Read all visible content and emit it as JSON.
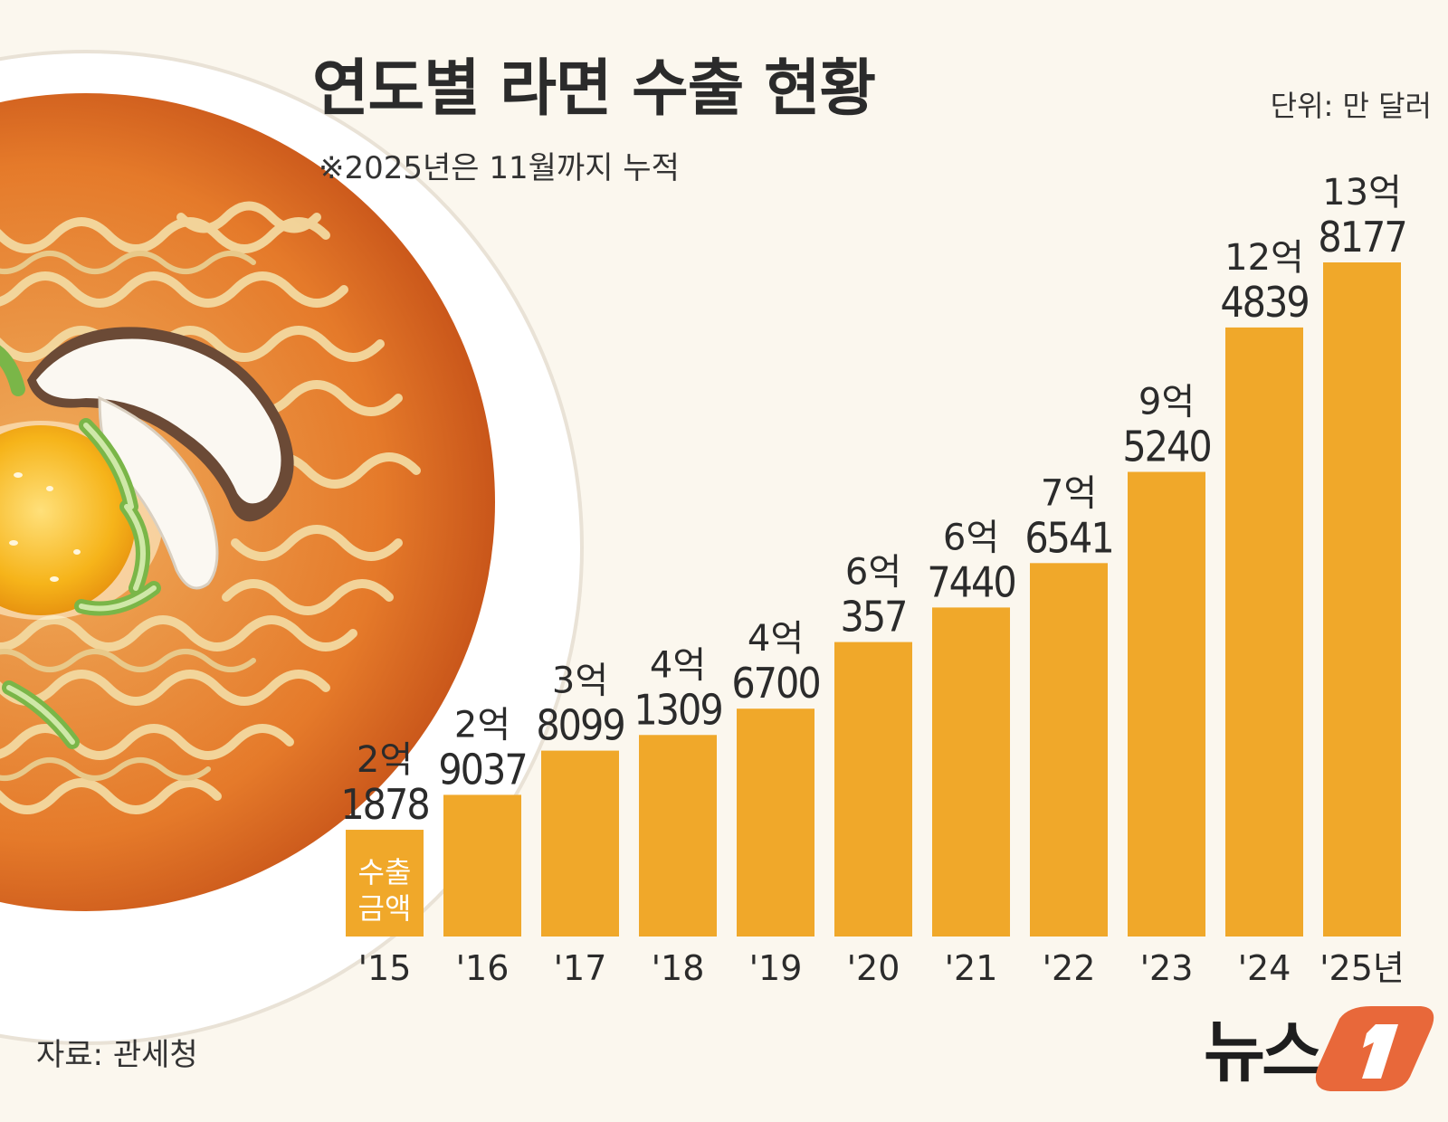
{
  "title": "연도별 라면 수출 현황",
  "note": "※2025년은 11월까지 누적",
  "unit": "단위: 만 달러",
  "source": "자료: 관세청",
  "logo_text": "뉴스1",
  "colors": {
    "bar": "#f0a82a",
    "text": "#2b2b2b",
    "background": "#fbf7ee",
    "logo_orange": "#e8683a"
  },
  "chart_data": {
    "type": "bar",
    "title": "연도별 라면 수출 현황",
    "xlabel": "",
    "ylabel": "",
    "unit": "만 달러",
    "categories": [
      "'15",
      "'16",
      "'17",
      "'18",
      "'19",
      "'20",
      "'21",
      "'22",
      "'23",
      "'24",
      "'25년"
    ],
    "values": [
      21878,
      29037,
      38099,
      41309,
      46700,
      60357,
      67440,
      76541,
      95240,
      124839,
      138177
    ],
    "value_labels": [
      [
        "2억",
        "1878"
      ],
      [
        "2억",
        "9037"
      ],
      [
        "3억",
        "8099"
      ],
      [
        "4억",
        "1309"
      ],
      [
        "4억",
        "6700"
      ],
      [
        "6억",
        "357"
      ],
      [
        "6억",
        "7440"
      ],
      [
        "7억",
        "6541"
      ],
      [
        "9억",
        "5240"
      ],
      [
        "12억",
        "4839"
      ],
      [
        "13억",
        "8177"
      ]
    ],
    "bar_inner_label": [
      "수출",
      "금액"
    ],
    "grid": false,
    "legend": "none"
  }
}
